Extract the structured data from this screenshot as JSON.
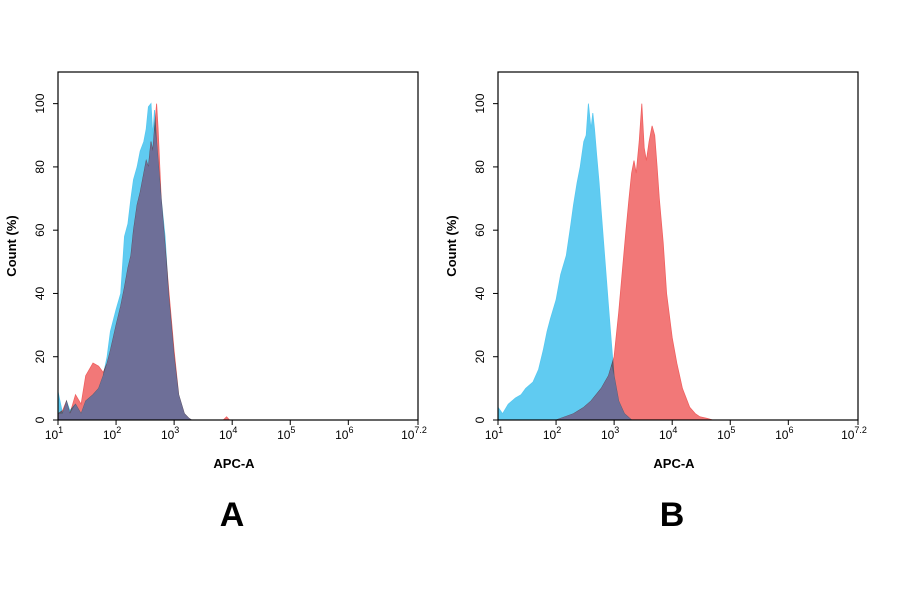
{
  "panels": [
    {
      "panel_label": "A"
    },
    {
      "panel_label": "B"
    }
  ],
  "colors": {
    "blue": "#57c8f0",
    "red": "#f06060",
    "overlap": "#70709a",
    "axis": "#000000"
  },
  "chart_data": [
    {
      "type": "area",
      "xlabel": "APC-A",
      "ylabel": "Count  (%)",
      "x_scale": "log10",
      "xlim": [
        10,
        15848932
      ],
      "ylim": [
        0,
        110
      ],
      "xticks": [
        {
          "value": 10,
          "base": "10",
          "exp": "1"
        },
        {
          "value": 100,
          "base": "10",
          "exp": "2"
        },
        {
          "value": 1000,
          "base": "10",
          "exp": "3"
        },
        {
          "value": 10000,
          "base": "10",
          "exp": "4"
        },
        {
          "value": 100000,
          "base": "10",
          "exp": "5"
        },
        {
          "value": 1000000,
          "base": "10",
          "exp": "6"
        },
        {
          "value": 15848932,
          "base": "10",
          "exp": "7.2"
        }
      ],
      "yticks": [
        "0",
        "20",
        "40",
        "60",
        "80",
        "100"
      ],
      "series": [
        {
          "color": "#57c8f0",
          "x": [
            10,
            12,
            14,
            16,
            20,
            25,
            30,
            40,
            50,
            60,
            70,
            80,
            100,
            120,
            140,
            160,
            180,
            200,
            230,
            260,
            300,
            330,
            360,
            400,
            430,
            460,
            500,
            550,
            600,
            700,
            800,
            1000,
            1200,
            1500,
            1800,
            2000
          ],
          "y": [
            9,
            2,
            6,
            3,
            5,
            2,
            6,
            8,
            10,
            14,
            20,
            28,
            35,
            40,
            58,
            62,
            70,
            76,
            80,
            85,
            88,
            92,
            99,
            100,
            90,
            98,
            88,
            78,
            70,
            58,
            40,
            20,
            8,
            2,
            0.5,
            0
          ]
        },
        {
          "color": "#f06060",
          "x": [
            10,
            12,
            14,
            16,
            20,
            25,
            30,
            40,
            50,
            60,
            70,
            80,
            100,
            120,
            140,
            160,
            180,
            200,
            230,
            260,
            300,
            330,
            360,
            400,
            430,
            460,
            500,
            530,
            560,
            600,
            700,
            800,
            1000,
            1200,
            1500,
            1800,
            2000,
            7000,
            8000,
            9000
          ],
          "y": [
            2,
            3,
            6,
            2,
            8,
            5,
            14,
            18,
            17,
            15,
            18,
            22,
            30,
            36,
            42,
            48,
            52,
            60,
            68,
            72,
            78,
            82,
            80,
            88,
            85,
            92,
            100,
            92,
            82,
            70,
            55,
            42,
            22,
            8,
            2,
            0.5,
            0,
            0,
            1,
            0
          ]
        }
      ]
    },
    {
      "type": "area",
      "xlabel": "APC-A",
      "ylabel": "Count  (%)",
      "x_scale": "log10",
      "xlim": [
        10,
        15848932
      ],
      "ylim": [
        0,
        110
      ],
      "xticks": [
        {
          "value": 10,
          "base": "10",
          "exp": "1"
        },
        {
          "value": 100,
          "base": "10",
          "exp": "2"
        },
        {
          "value": 1000,
          "base": "10",
          "exp": "3"
        },
        {
          "value": 10000,
          "base": "10",
          "exp": "4"
        },
        {
          "value": 100000,
          "base": "10",
          "exp": "5"
        },
        {
          "value": 1000000,
          "base": "10",
          "exp": "6"
        },
        {
          "value": 15848932,
          "base": "10",
          "exp": "7.2"
        }
      ],
      "yticks": [
        "0",
        "20",
        "40",
        "60",
        "80",
        "100"
      ],
      "series": [
        {
          "color": "#57c8f0",
          "x": [
            10,
            12,
            15,
            20,
            25,
            30,
            40,
            50,
            60,
            70,
            80,
            100,
            120,
            150,
            180,
            200,
            230,
            260,
            300,
            330,
            360,
            400,
            430,
            460,
            500,
            550,
            600,
            700,
            800,
            900,
            1000,
            1200,
            1500,
            2000
          ],
          "y": [
            4,
            2,
            5,
            7,
            8,
            10,
            12,
            16,
            22,
            28,
            32,
            38,
            46,
            52,
            62,
            68,
            75,
            80,
            88,
            90,
            100,
            92,
            97,
            92,
            84,
            75,
            66,
            50,
            36,
            24,
            14,
            6,
            2,
            0
          ]
        },
        {
          "color": "#f06060",
          "x": [
            100,
            200,
            300,
            400,
            600,
            800,
            1000,
            1200,
            1400,
            1600,
            1800,
            2000,
            2200,
            2400,
            2700,
            3000,
            3300,
            3600,
            4000,
            4500,
            5000,
            5500,
            6000,
            7000,
            8000,
            10000,
            12000,
            15000,
            20000,
            25000,
            30000,
            40000,
            50000
          ],
          "y": [
            0,
            2,
            4,
            6,
            10,
            14,
            20,
            34,
            48,
            60,
            70,
            78,
            82,
            78,
            88,
            100,
            86,
            82,
            88,
            93,
            90,
            80,
            70,
            56,
            40,
            26,
            18,
            10,
            4,
            2,
            1,
            0.5,
            0
          ]
        }
      ]
    }
  ]
}
